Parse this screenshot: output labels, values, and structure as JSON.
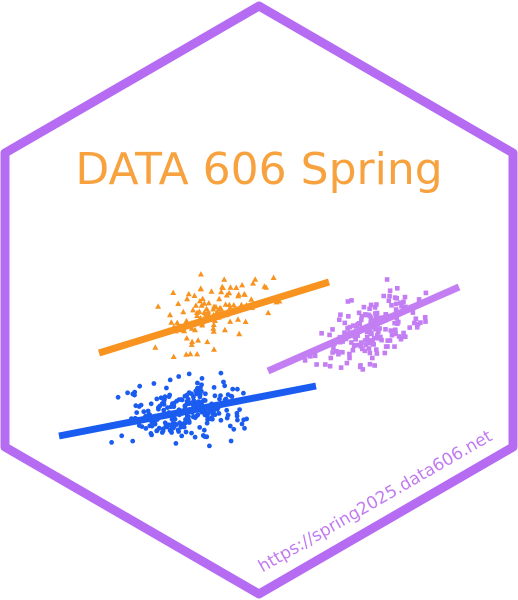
{
  "title": "DATA 606 Spring",
  "url": "https://spring2025.data606.net",
  "colors": {
    "border": "#b66cf2",
    "title": "#f7a23e",
    "url": "#c17bf1",
    "orange": "#f7931e",
    "blue": "#1b5cf0",
    "purple": "#c37ef3",
    "background": "#ffffff"
  },
  "graphic": {
    "description": "hexagon logo with three scatter clusters and regression lines",
    "clusters": [
      {
        "name": "orange",
        "marker": "triangle"
      },
      {
        "name": "blue",
        "marker": "circle"
      },
      {
        "name": "purple",
        "marker": "square"
      }
    ]
  }
}
